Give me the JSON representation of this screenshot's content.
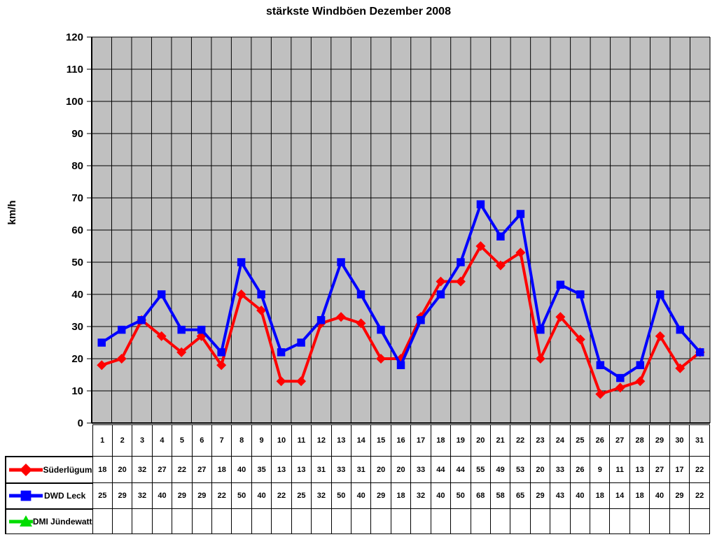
{
  "title": "stärkste Windböen Dezember 2008",
  "chart_data": {
    "type": "line",
    "title": "stärkste Windböen Dezember 2008",
    "xlabel": "",
    "ylabel": "km/h",
    "ylim": [
      0,
      120
    ],
    "y_ticks": [
      0,
      10,
      20,
      30,
      40,
      50,
      60,
      70,
      80,
      90,
      100,
      110,
      120
    ],
    "grid": true,
    "plot_background": "#C0C0C0",
    "grid_color": "#000000",
    "legend_position": "table-left",
    "categories": [
      "1",
      "2",
      "3",
      "4",
      "5",
      "6",
      "7",
      "8",
      "9",
      "10",
      "11",
      "12",
      "13",
      "14",
      "15",
      "16",
      "17",
      "18",
      "19",
      "20",
      "21",
      "22",
      "23",
      "24",
      "25",
      "26",
      "27",
      "28",
      "29",
      "30",
      "31"
    ],
    "series": [
      {
        "name": "Süderlügum",
        "color": "#FF0000",
        "marker": "diamond",
        "values": [
          18,
          20,
          32,
          27,
          22,
          27,
          18,
          40,
          35,
          13,
          13,
          31,
          33,
          31,
          20,
          20,
          33,
          44,
          44,
          55,
          49,
          53,
          20,
          33,
          26,
          9,
          11,
          13,
          27,
          17,
          22
        ]
      },
      {
        "name": "DWD Leck",
        "color": "#0000FF",
        "marker": "square",
        "values": [
          25,
          29,
          32,
          40,
          29,
          29,
          22,
          50,
          40,
          22,
          25,
          32,
          50,
          40,
          29,
          18,
          32,
          40,
          50,
          68,
          58,
          65,
          29,
          43,
          40,
          18,
          14,
          18,
          40,
          29,
          22
        ]
      },
      {
        "name": "DMI Jündewatt",
        "color": "#00DD00",
        "marker": "triangle",
        "values": []
      }
    ]
  }
}
